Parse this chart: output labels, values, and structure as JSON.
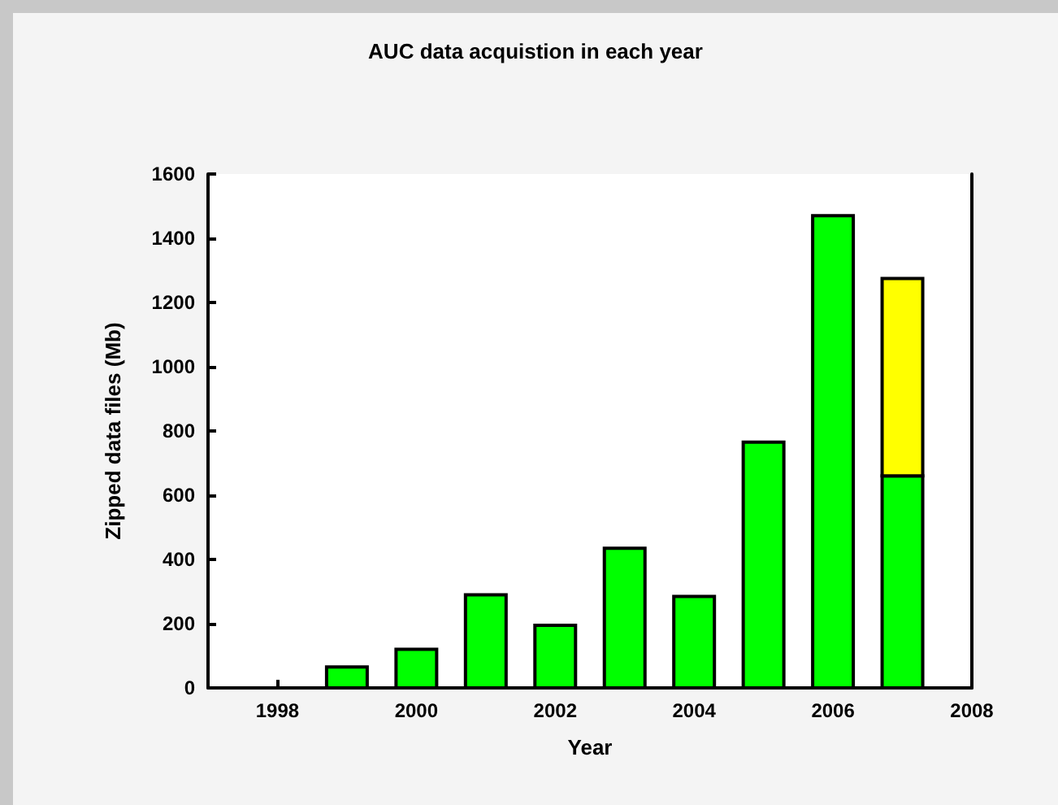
{
  "chart_data": {
    "type": "bar",
    "title": "AUC data acquistion in each year",
    "xlabel": "Year",
    "ylabel": "Zipped data files (Mb)",
    "x": [
      1999,
      2000,
      2001,
      2002,
      2003,
      2004,
      2005,
      2006,
      2007
    ],
    "series": [
      {
        "color": "#00ff00",
        "values": [
          65,
          120,
          290,
          195,
          435,
          285,
          765,
          1470,
          660
        ]
      },
      {
        "color": "#ffff00",
        "values": [
          null,
          null,
          null,
          null,
          null,
          null,
          null,
          null,
          615
        ]
      }
    ],
    "stacked": true,
    "xlim": [
      1997,
      2008
    ],
    "xticks": [
      1998,
      2000,
      2002,
      2004,
      2006,
      2008
    ],
    "ylim": [
      0,
      1600
    ],
    "yticks": [
      0,
      200,
      400,
      600,
      800,
      1000,
      1200,
      1400,
      1600
    ]
  }
}
